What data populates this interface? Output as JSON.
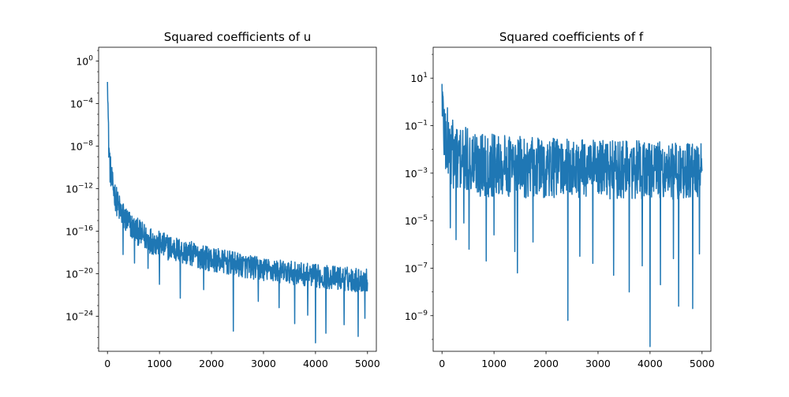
{
  "chart_data": [
    {
      "type": "line",
      "title": "Squared coefficients of u",
      "xlabel": "",
      "ylabel": "",
      "yscale": "log",
      "xlim": [
        -170,
        5170
      ],
      "ylim_exp": [
        -27.3,
        1.3
      ],
      "x_ticks": [
        0,
        1000,
        2000,
        3000,
        4000,
        5000
      ],
      "x_tick_labels": [
        "0",
        "1000",
        "2000",
        "3000",
        "4000",
        "5000"
      ],
      "y_ticks_exp": [
        0,
        -4,
        -8,
        -12,
        -16,
        -20,
        -24
      ],
      "y_tick_labels": [
        "10",
        "10",
        "10",
        "10",
        "10",
        "10",
        "10"
      ],
      "y_tick_exponents": [
        "0",
        "−4",
        "−8",
        "−12",
        "−16",
        "−20",
        "−24"
      ],
      "grid": false,
      "color": "#1f77b4",
      "envelope": {
        "x": [
          0,
          20,
          50,
          100,
          200,
          300,
          500,
          700,
          1000,
          1500,
          2000,
          2500,
          3000,
          3500,
          4000,
          4500,
          5000
        ],
        "upper_exp": [
          0.0,
          -5.5,
          -8.5,
          -10.5,
          -12.2,
          -13.2,
          -14.5,
          -15.2,
          -16.0,
          -16.8,
          -17.5,
          -18.0,
          -18.5,
          -18.8,
          -19.1,
          -19.3,
          -19.5
        ],
        "lower_exp": [
          -2.0,
          -9.0,
          -11.5,
          -13.0,
          -15.0,
          -16.0,
          -17.0,
          -17.8,
          -18.5,
          -19.2,
          -19.8,
          -20.3,
          -20.7,
          -21.0,
          -21.3,
          -21.6,
          -21.8
        ]
      },
      "spikes": [
        {
          "x": 300,
          "y_exp": -18.2
        },
        {
          "x": 520,
          "y_exp": -19.0
        },
        {
          "x": 780,
          "y_exp": -19.5
        },
        {
          "x": 1000,
          "y_exp": -21.0
        },
        {
          "x": 1400,
          "y_exp": -22.3
        },
        {
          "x": 1850,
          "y_exp": -21.5
        },
        {
          "x": 2420,
          "y_exp": -25.4
        },
        {
          "x": 2900,
          "y_exp": -22.6
        },
        {
          "x": 3300,
          "y_exp": -23.2
        },
        {
          "x": 3600,
          "y_exp": -24.7
        },
        {
          "x": 3850,
          "y_exp": -23.9
        },
        {
          "x": 4000,
          "y_exp": -26.5
        },
        {
          "x": 4200,
          "y_exp": -25.6
        },
        {
          "x": 4550,
          "y_exp": -24.8
        },
        {
          "x": 4820,
          "y_exp": -25.9
        },
        {
          "x": 4950,
          "y_exp": -24.2
        }
      ]
    },
    {
      "type": "line",
      "title": "Squared coefficients of f",
      "xlabel": "",
      "ylabel": "",
      "yscale": "log",
      "xlim": [
        -170,
        5170
      ],
      "ylim_exp": [
        -10.5,
        2.3
      ],
      "x_ticks": [
        0,
        1000,
        2000,
        3000,
        4000,
        5000
      ],
      "x_tick_labels": [
        "0",
        "1000",
        "2000",
        "3000",
        "4000",
        "5000"
      ],
      "y_ticks_exp": [
        1,
        -1,
        -3,
        -5,
        -7,
        -9
      ],
      "y_tick_labels": [
        "10",
        "10",
        "10",
        "10",
        "10",
        "10"
      ],
      "y_tick_exponents": [
        "1",
        "−1",
        "−3",
        "−5",
        "−7",
        "−9"
      ],
      "grid": false,
      "color": "#1f77b4",
      "envelope": {
        "x": [
          0,
          20,
          50,
          100,
          200,
          300,
          500,
          700,
          1000,
          1500,
          2000,
          2500,
          3000,
          3500,
          4000,
          4500,
          5000
        ],
        "upper_exp": [
          1.8,
          1.0,
          0.4,
          -0.2,
          -0.6,
          -0.9,
          -1.1,
          -1.2,
          -1.3,
          -1.45,
          -1.5,
          -1.55,
          -1.6,
          -1.62,
          -1.65,
          -1.7,
          -1.75
        ],
        "lower_exp": [
          -0.5,
          -2.5,
          -3.0,
          -3.4,
          -3.7,
          -3.8,
          -3.9,
          -4.0,
          -4.0,
          -4.05,
          -4.1,
          -4.1,
          -4.1,
          -4.1,
          -4.1,
          -4.1,
          -4.1
        ]
      },
      "spikes": [
        {
          "x": 160,
          "y_exp": -5.3
        },
        {
          "x": 270,
          "y_exp": -5.8
        },
        {
          "x": 420,
          "y_exp": -5.1
        },
        {
          "x": 520,
          "y_exp": -6.2
        },
        {
          "x": 850,
          "y_exp": -6.7
        },
        {
          "x": 1000,
          "y_exp": -5.6
        },
        {
          "x": 1400,
          "y_exp": -6.3
        },
        {
          "x": 1450,
          "y_exp": -7.2
        },
        {
          "x": 1750,
          "y_exp": -5.9
        },
        {
          "x": 2420,
          "y_exp": -9.2
        },
        {
          "x": 2650,
          "y_exp": -6.5
        },
        {
          "x": 2900,
          "y_exp": -6.8
        },
        {
          "x": 3300,
          "y_exp": -7.3
        },
        {
          "x": 3600,
          "y_exp": -8.0
        },
        {
          "x": 3850,
          "y_exp": -6.9
        },
        {
          "x": 4000,
          "y_exp": -10.3
        },
        {
          "x": 4200,
          "y_exp": -7.7
        },
        {
          "x": 4450,
          "y_exp": -6.6
        },
        {
          "x": 4550,
          "y_exp": -8.6
        },
        {
          "x": 4820,
          "y_exp": -8.7
        },
        {
          "x": 4950,
          "y_exp": -6.4
        }
      ]
    }
  ]
}
